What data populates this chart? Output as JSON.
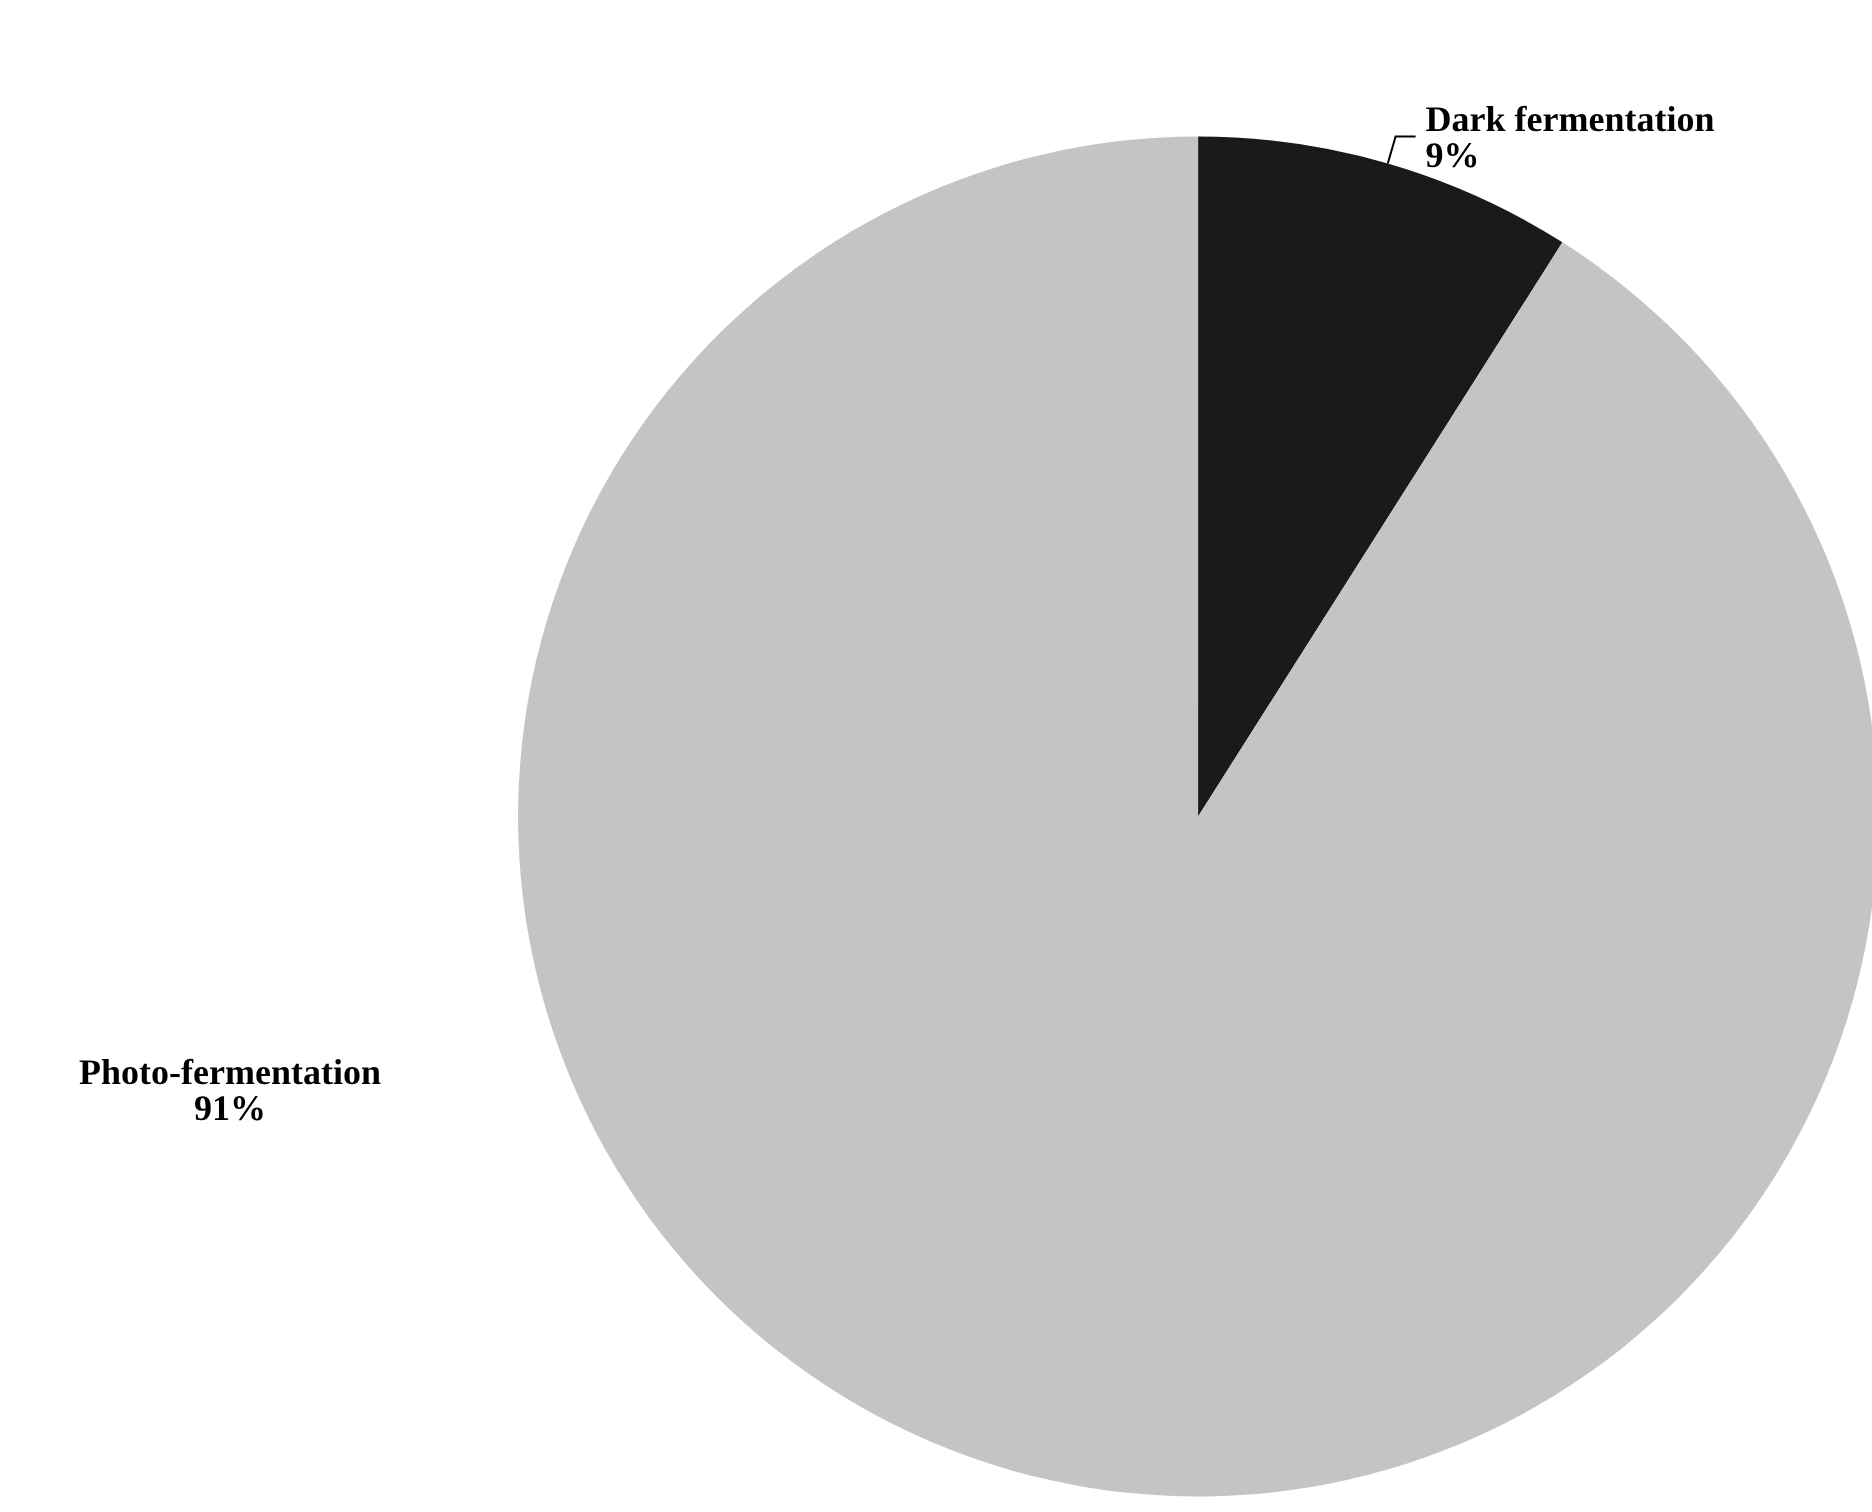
{
  "chart_data": {
    "type": "pie",
    "categories": [
      "Dark fermentation",
      "Photo-fermentation"
    ],
    "values": [
      9,
      91
    ],
    "colors": [
      "#1a1a1a",
      "#c4c4c4"
    ],
    "value_labels": [
      "9%",
      "91%"
    ]
  }
}
